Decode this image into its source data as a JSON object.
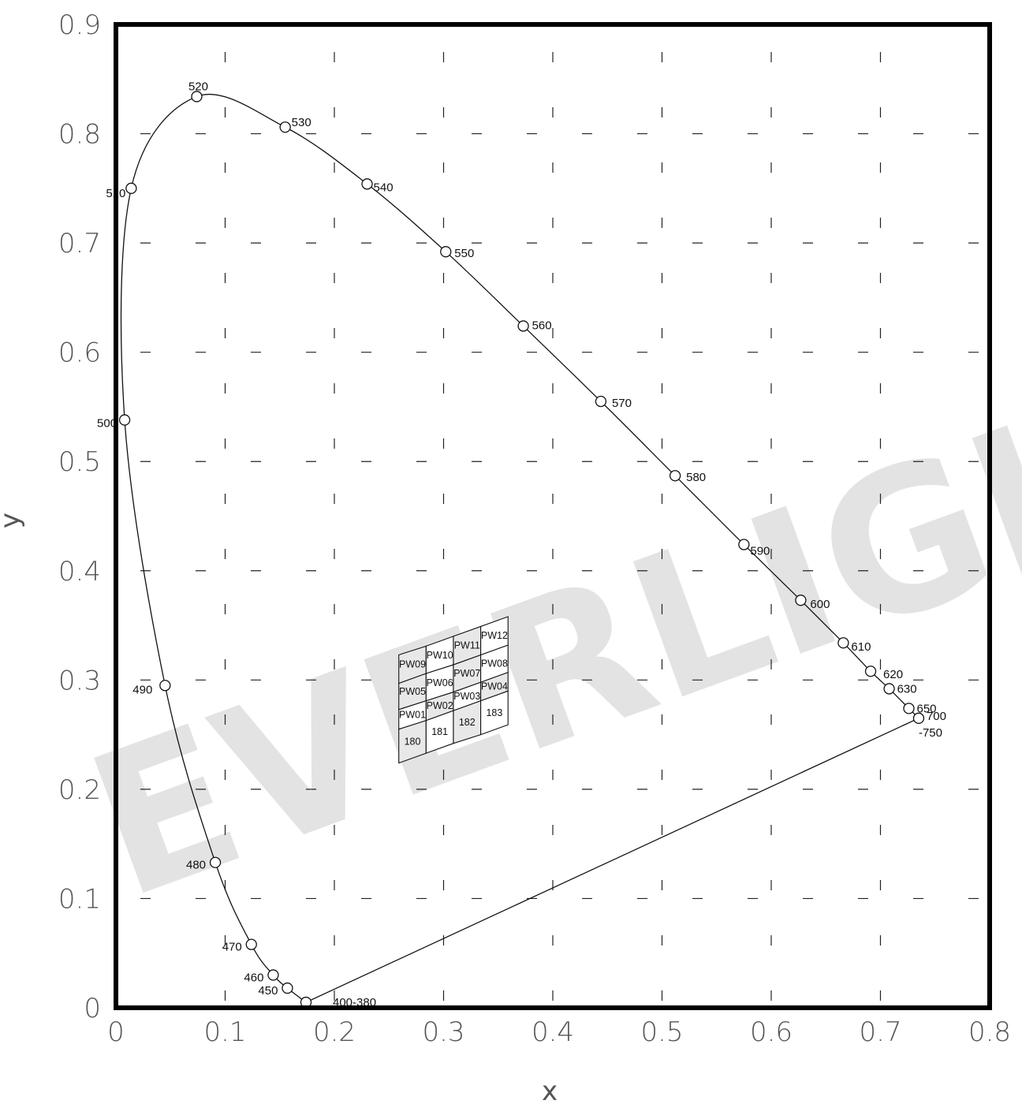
{
  "watermark": "EVERLIGHT",
  "chart_data": {
    "type": "scatter",
    "title": "",
    "xlabel": "x",
    "ylabel": "y",
    "xlim": [
      0,
      0.8
    ],
    "ylim": [
      0,
      0.9
    ],
    "x_ticks": [
      "0",
      "0.1",
      "0.2",
      "0.3",
      "0.4",
      "0.5",
      "0.6",
      "0.7",
      "0.8"
    ],
    "y_ticks": [
      "0",
      "0.1",
      "0.2",
      "0.3",
      "0.4",
      "0.5",
      "0.6",
      "0.7",
      "0.8",
      "0.9"
    ],
    "grid": "dashed",
    "spectral_locus_points": [
      {
        "label": "400-380",
        "x": 0.174,
        "y": 0.005
      },
      {
        "label": "450",
        "x": 0.157,
        "y": 0.018
      },
      {
        "label": "460",
        "x": 0.144,
        "y": 0.03
      },
      {
        "label": "470",
        "x": 0.124,
        "y": 0.058
      },
      {
        "label": "480",
        "x": 0.091,
        "y": 0.133
      },
      {
        "label": "490",
        "x": 0.045,
        "y": 0.295
      },
      {
        "label": "500",
        "x": 0.008,
        "y": 0.538
      },
      {
        "label": "510",
        "x": 0.014,
        "y": 0.75
      },
      {
        "label": "520",
        "x": 0.074,
        "y": 0.834
      },
      {
        "label": "530",
        "x": 0.155,
        "y": 0.806
      },
      {
        "label": "540",
        "x": 0.23,
        "y": 0.754
      },
      {
        "label": "550",
        "x": 0.302,
        "y": 0.692
      },
      {
        "label": "560",
        "x": 0.373,
        "y": 0.624
      },
      {
        "label": "570",
        "x": 0.444,
        "y": 0.555
      },
      {
        "label": "580",
        "x": 0.512,
        "y": 0.487
      },
      {
        "label": "590",
        "x": 0.575,
        "y": 0.424
      },
      {
        "label": "600",
        "x": 0.627,
        "y": 0.373
      },
      {
        "label": "610",
        "x": 0.666,
        "y": 0.334
      },
      {
        "label": "620",
        "x": 0.691,
        "y": 0.308
      },
      {
        "label": "630",
        "x": 0.708,
        "y": 0.292
      },
      {
        "label": "650",
        "x": 0.726,
        "y": 0.274
      },
      {
        "label": "700",
        "label2": "-750",
        "x": 0.735,
        "y": 0.265
      }
    ],
    "bins": [
      {
        "label": "180",
        "corners": [
          [
            0.259,
            0.224
          ],
          [
            0.284,
            0.233
          ],
          [
            0.284,
            0.263
          ],
          [
            0.259,
            0.255
          ]
        ]
      },
      {
        "label": "181",
        "corners": [
          [
            0.284,
            0.233
          ],
          [
            0.309,
            0.242
          ],
          [
            0.309,
            0.272
          ],
          [
            0.284,
            0.263
          ]
        ]
      },
      {
        "label": "182",
        "corners": [
          [
            0.309,
            0.242
          ],
          [
            0.334,
            0.25
          ],
          [
            0.334,
            0.281
          ],
          [
            0.309,
            0.272
          ]
        ]
      },
      {
        "label": "183",
        "corners": [
          [
            0.334,
            0.25
          ],
          [
            0.359,
            0.259
          ],
          [
            0.359,
            0.29
          ],
          [
            0.334,
            0.281
          ]
        ]
      },
      {
        "label": "PW01",
        "corners": [
          [
            0.259,
            0.255
          ],
          [
            0.284,
            0.263
          ],
          [
            0.284,
            0.281
          ],
          [
            0.259,
            0.273
          ]
        ]
      },
      {
        "label": "PW02",
        "corners": [
          [
            0.284,
            0.263
          ],
          [
            0.309,
            0.272
          ],
          [
            0.309,
            0.289
          ],
          [
            0.284,
            0.281
          ]
        ]
      },
      {
        "label": "PW03",
        "corners": [
          [
            0.309,
            0.272
          ],
          [
            0.334,
            0.281
          ],
          [
            0.334,
            0.298
          ],
          [
            0.309,
            0.289
          ]
        ]
      },
      {
        "label": "PW04",
        "corners": [
          [
            0.334,
            0.281
          ],
          [
            0.359,
            0.29
          ],
          [
            0.359,
            0.307
          ],
          [
            0.334,
            0.298
          ]
        ]
      },
      {
        "label": "PW05",
        "corners": [
          [
            0.259,
            0.273
          ],
          [
            0.284,
            0.281
          ],
          [
            0.284,
            0.306
          ],
          [
            0.259,
            0.297
          ]
        ]
      },
      {
        "label": "PW06",
        "corners": [
          [
            0.284,
            0.281
          ],
          [
            0.309,
            0.289
          ],
          [
            0.309,
            0.314
          ],
          [
            0.284,
            0.306
          ]
        ]
      },
      {
        "label": "PW07",
        "corners": [
          [
            0.309,
            0.289
          ],
          [
            0.334,
            0.298
          ],
          [
            0.334,
            0.323
          ],
          [
            0.309,
            0.314
          ]
        ]
      },
      {
        "label": "PW08",
        "corners": [
          [
            0.334,
            0.298
          ],
          [
            0.359,
            0.307
          ],
          [
            0.359,
            0.332
          ],
          [
            0.334,
            0.323
          ]
        ]
      },
      {
        "label": "PW09",
        "corners": [
          [
            0.259,
            0.297
          ],
          [
            0.284,
            0.306
          ],
          [
            0.284,
            0.331
          ],
          [
            0.259,
            0.323
          ]
        ]
      },
      {
        "label": "PW10",
        "corners": [
          [
            0.284,
            0.306
          ],
          [
            0.309,
            0.314
          ],
          [
            0.309,
            0.34
          ],
          [
            0.284,
            0.331
          ]
        ]
      },
      {
        "label": "PW11",
        "corners": [
          [
            0.309,
            0.314
          ],
          [
            0.334,
            0.323
          ],
          [
            0.334,
            0.349
          ],
          [
            0.309,
            0.34
          ]
        ]
      },
      {
        "label": "PW12",
        "corners": [
          [
            0.334,
            0.323
          ],
          [
            0.359,
            0.332
          ],
          [
            0.359,
            0.358
          ],
          [
            0.334,
            0.349
          ]
        ]
      }
    ],
    "shaded_bins": [
      "180",
      "182",
      "PW02",
      "PW04",
      "PW05",
      "PW07",
      "PW09",
      "PW11"
    ]
  }
}
